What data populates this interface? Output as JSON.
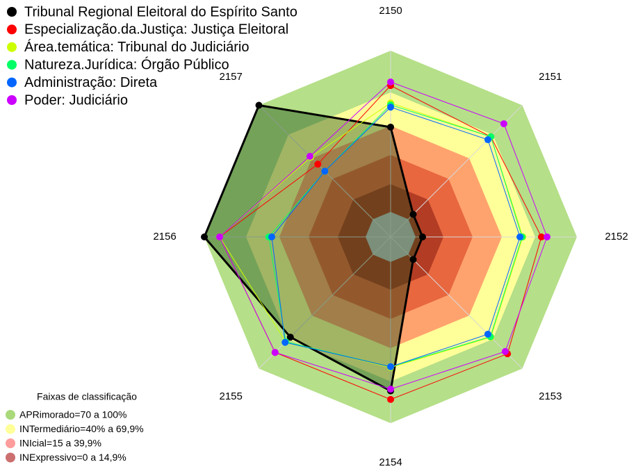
{
  "chart_data": {
    "type": "radar",
    "categories": [
      "2150",
      "2151",
      "2152",
      "2153",
      "2154",
      "2155",
      "2156",
      "2157"
    ],
    "rlim": [
      0,
      100
    ],
    "series": [
      {
        "name": "Tribunal Regional Eleitoral do Espírito Santo",
        "color": "#000000",
        "values": [
          52.6,
          4.3,
          4.3,
          4.3,
          80,
          72.4,
          100,
          100
        ]
      },
      {
        "name": "Especialização.da.Justiça: Justiça Eleitoral",
        "color": "#ff0000",
        "values": [
          78.4,
          72.4,
          78,
          87,
          85.3,
          85.8,
          90.5,
          48.3
        ]
      },
      {
        "name": "Área.temática: Tribunal do Judiciário",
        "color": "#ccff00",
        "values": [
          67.6,
          72.4,
          66.5,
          72.4,
          65.5,
          76.5,
          90.5,
          54.5
        ]
      },
      {
        "name": "Natureza.Jurídica: Órgão Público",
        "color": "#00ff66",
        "values": [
          66.4,
          72.4,
          66,
          72,
          65,
          76.5,
          60,
          42.2
        ]
      },
      {
        "name": "Administração: Direta",
        "color": "#0066ff",
        "values": [
          65,
          69.8,
          64.7,
          69.8,
          65,
          77,
          58.2,
          42.2
        ]
      },
      {
        "name": "Poder: Judiciário",
        "color": "#cc00ff",
        "values": [
          80.6,
          83.8,
          81.5,
          85,
          78.9,
          85.8,
          90.5,
          55.2
        ]
      }
    ],
    "band_legend": {
      "title": "Faixas de classificação",
      "items": [
        {
          "label": "APRimorado=70 a 100%",
          "color": "#a9d97a"
        },
        {
          "label": "INTermediário=40% a 69,9%",
          "color": "#ffff99"
        },
        {
          "label": "INIcial=15 a 39,9%",
          "color": "#ff9c9c"
        },
        {
          "label": "INExpressivo=0 a 14,9%",
          "color": "#cc6f6f"
        }
      ]
    }
  }
}
